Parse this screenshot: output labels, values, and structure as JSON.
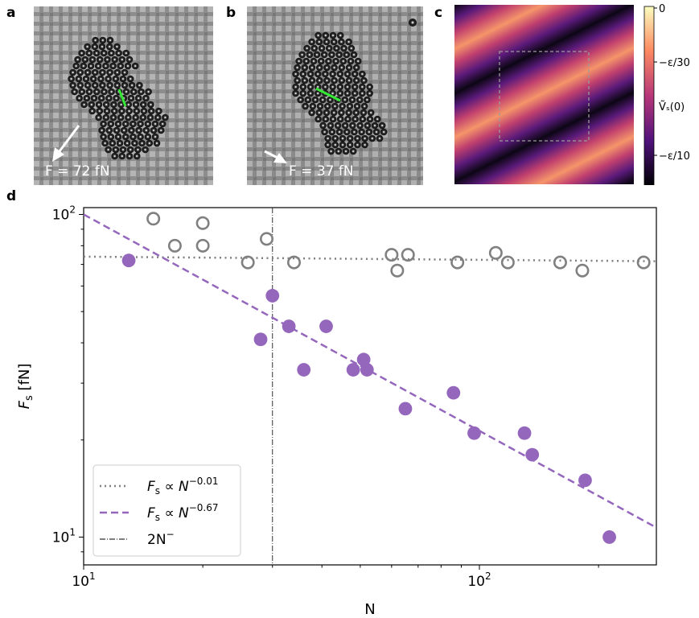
{
  "panels": {
    "a": {
      "letter": "a",
      "force_label": "F = 72 fN"
    },
    "b": {
      "letter": "b",
      "force_label": "F = 37 fN"
    },
    "c": {
      "letter": "c",
      "colorbar_ticks": [
        "0",
        "−ε/30",
        "−ε/10"
      ],
      "colorbar_label": "Ṽₛ(0)"
    },
    "d": {
      "letter": "d"
    }
  },
  "chart_data": {
    "type": "scatter",
    "xscale": "log",
    "yscale": "log",
    "xlim": [
      10,
      280
    ],
    "ylim": [
      8.2,
      105
    ],
    "xlabel": "N",
    "ylabel": "Fₛ [fN]",
    "x_ticks": [
      {
        "value": 10,
        "base": "10",
        "exp": "1"
      },
      {
        "value": 100,
        "base": "10",
        "exp": "2"
      }
    ],
    "y_ticks": [
      {
        "value": 10,
        "base": "10",
        "exp": "1"
      },
      {
        "value": 100,
        "base": "10",
        "exp": "2"
      }
    ],
    "series": [
      {
        "name": "open circles",
        "marker": "open-circle",
        "color": "#808080",
        "x": [
          15,
          17,
          20,
          20,
          26,
          29,
          34,
          60,
          62,
          66,
          88,
          110,
          118,
          160,
          182,
          260
        ],
        "y": [
          97,
          80,
          94,
          80,
          71,
          84,
          71,
          75,
          67,
          75,
          71,
          76,
          71,
          71,
          67,
          71
        ]
      },
      {
        "name": "filled circles",
        "marker": "filled-circle",
        "color": "#9467bd",
        "x": [
          13,
          28,
          30,
          33,
          36,
          41,
          48,
          51,
          52,
          65,
          86,
          97,
          130,
          136,
          185,
          213
        ],
        "y": [
          72,
          41,
          56,
          45,
          33,
          45,
          33,
          35.5,
          33,
          25,
          28,
          21,
          21,
          18,
          15,
          10
        ]
      }
    ],
    "fit_lines": [
      {
        "label": "Fₛ ∝ N⁻⁰·⁰¹",
        "style": "dotted",
        "color": "#808080",
        "x": [
          10,
          280
        ],
        "y": [
          74,
          71.6
        ]
      },
      {
        "label": "Fₛ ∝ N⁻⁰·⁶⁷",
        "style": "dashed",
        "color": "#9467bd",
        "x": [
          10,
          280
        ],
        "y": [
          100,
          10.7
        ]
      }
    ],
    "reference_line": {
      "label": "2N⁻",
      "x": 30,
      "style": "dashdot",
      "color": "#333333"
    },
    "legend_position": "lower-left",
    "legend": {
      "entry1": {
        "prefix": "F",
        "sub": "s",
        "mid": " ∝ ",
        "base": "N",
        "sup": "−0.01"
      },
      "entry2": {
        "prefix": "F",
        "sub": "s",
        "mid": " ∝ ",
        "base": "N",
        "sup": "−0.67"
      },
      "entry3": {
        "prefix": "2N",
        "sup": "−"
      }
    }
  },
  "colors": {
    "open": "#808080",
    "filled": "#9467bd"
  }
}
